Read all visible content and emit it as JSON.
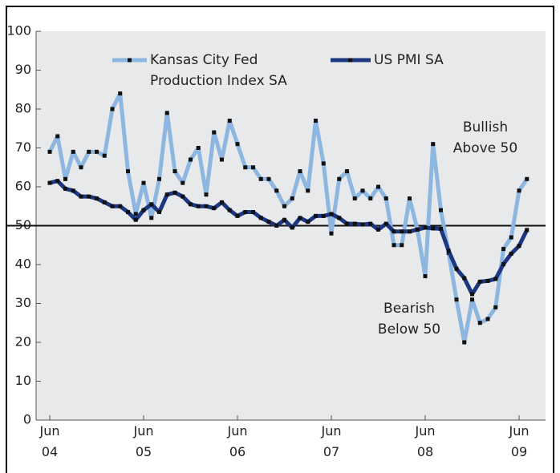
{
  "chart_data": {
    "type": "line",
    "categories": [
      "Jun 04",
      null,
      null,
      null,
      null,
      null,
      null,
      null,
      null,
      null,
      null,
      null,
      "Jun 05",
      null,
      null,
      null,
      null,
      null,
      null,
      null,
      null,
      null,
      null,
      null,
      "Jun 06",
      null,
      null,
      null,
      null,
      null,
      null,
      null,
      null,
      null,
      null,
      null,
      "Jun 07",
      null,
      null,
      null,
      null,
      null,
      null,
      null,
      null,
      null,
      null,
      null,
      "Jun 08",
      null,
      null,
      null,
      null,
      null,
      null,
      null,
      null,
      null,
      null,
      null,
      "Jun 09",
      null
    ],
    "series": [
      {
        "name": "Kansas City Fed Production Index SA",
        "color": "#8db6e0",
        "values": [
          69,
          73,
          62,
          69,
          65,
          69,
          69,
          68,
          80,
          84,
          64,
          53,
          61,
          52,
          62,
          79,
          64,
          61,
          67,
          70,
          58,
          74,
          67,
          77,
          71,
          65,
          65,
          62,
          62,
          59,
          55,
          57,
          64,
          59,
          77,
          66,
          48,
          62,
          64,
          57,
          59,
          57,
          60,
          57,
          45,
          45,
          57,
          49,
          37,
          71,
          54,
          43,
          31,
          20,
          31,
          25,
          26,
          29,
          44,
          47,
          59,
          62
        ]
      },
      {
        "name": "US PMI SA",
        "color": "#1c3780",
        "values": [
          61,
          61.5,
          59.5,
          59,
          57.5,
          57.5,
          57,
          56,
          55,
          55,
          53.5,
          51.5,
          54,
          55.5,
          53.5,
          58,
          58.5,
          57.5,
          55.5,
          55,
          55,
          54.5,
          56,
          54,
          52.5,
          53.5,
          53.5,
          52,
          51,
          50,
          51.5,
          49.5,
          52,
          51,
          52.5,
          52.5,
          53,
          52,
          50.5,
          50.5,
          50.3,
          50.5,
          49,
          50.5,
          48.5,
          48.5,
          48.5,
          49,
          49.5,
          49.3,
          49.2,
          43.5,
          38.9,
          36.5,
          32.4,
          35.6,
          35.8,
          36.3,
          40.1,
          42.8,
          44.8,
          48.9
        ]
      }
    ],
    "ylim": [
      0,
      100
    ],
    "yticks": [
      0,
      10,
      20,
      30,
      40,
      50,
      60,
      70,
      80,
      90,
      100
    ],
    "reference_line": 50,
    "annotations": [
      "Bullish Above 50",
      "Bearish Below 50"
    ]
  }
}
